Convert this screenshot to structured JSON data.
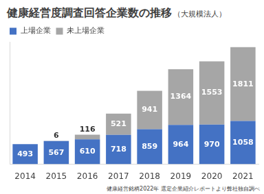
{
  "chart_data": {
    "type": "bar",
    "title": "健康経営度調査回答企業数の推移",
    "subtitle": "（大規模法人）",
    "annotation": "健康経営銘柄2022年 選定企業紹介レポートより弊社独自調べ",
    "categories": [
      "2014",
      "2015",
      "2016",
      "2017",
      "2018",
      "2019",
      "2020",
      "2021"
    ],
    "series": [
      {
        "name": "上場企業",
        "color": "#4472c4",
        "values": [
          493,
          567,
          610,
          718,
          859,
          964,
          970,
          1058
        ]
      },
      {
        "name": "未上場企業",
        "color": "#a6a6a6",
        "values": [
          null,
          6,
          116,
          521,
          941,
          1364,
          1553,
          1811
        ]
      }
    ],
    "ylim": [
      0,
      3000
    ],
    "stacked": true,
    "data_labels": true,
    "legend": "top-left",
    "tick_labels": "x",
    "grid": false
  }
}
